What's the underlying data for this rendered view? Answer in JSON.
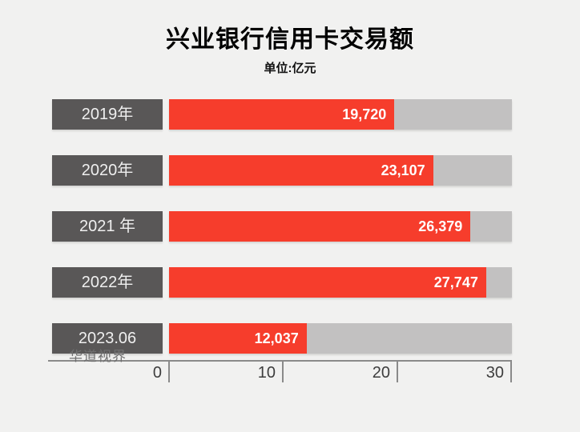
{
  "page": {
    "background_color": "#f1f1f0"
  },
  "header": {
    "title": "兴业银行信用卡交易额",
    "subtitle": "单位:亿元"
  },
  "watermark": {
    "text": "华道视界"
  },
  "chart_data": {
    "type": "bar",
    "orientation": "horizontal",
    "title": "兴业银行信用卡交易额",
    "unit": "亿元",
    "categories": [
      "2019年",
      "2020年",
      "2021 年",
      "2022年",
      "2023.06"
    ],
    "values": [
      19720,
      23107,
      26379,
      27747,
      12037
    ],
    "value_labels": [
      "19,720",
      "23,107",
      "26,379",
      "27,747",
      "12,037"
    ],
    "axis": {
      "min": 0,
      "max": 30000,
      "tick_values": [
        0,
        10000,
        20000,
        30000
      ],
      "tick_labels": [
        "0",
        "10",
        "20",
        "30"
      ]
    },
    "grid": false,
    "legend": false,
    "colors": {
      "bar_fill": "#f63d2c",
      "bar_track": "#c2c1c1",
      "category_box": "#595757",
      "axis_line": "#8a8a8a",
      "background": "#f1f1f0",
      "value_text": "#ffffff",
      "category_text": "#efefef",
      "axis_text": "#3d3d3d",
      "watermark_text": "#6f6f6f"
    }
  }
}
